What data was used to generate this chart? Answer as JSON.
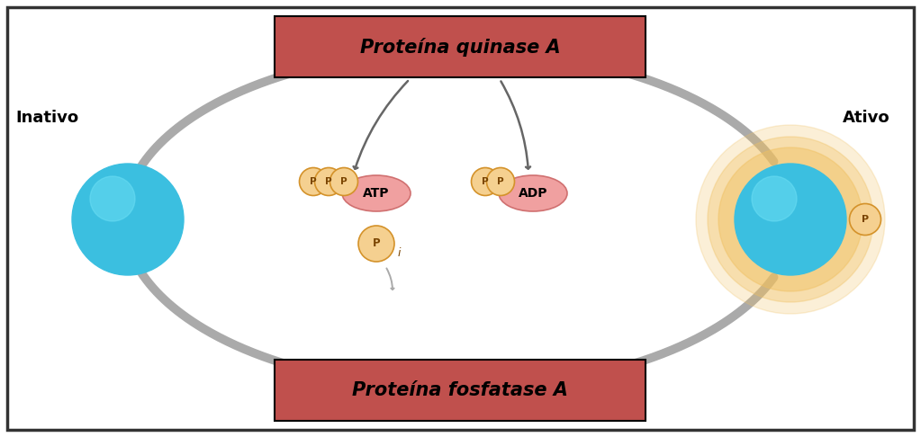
{
  "title": "Proteína quinase A",
  "title2": "Proteína fosfatase A",
  "label_inativo": "Inativo",
  "label_ativo": "Ativo",
  "label_atp": "ATP",
  "label_adp": "ADP",
  "bg_color": "#ffffff",
  "border_color": "#333333",
  "protein_color": "#3bbfe0",
  "glow_color": "#f0c060",
  "atp_ellipse_color": "#f0a0a0",
  "p_ball_color": "#f5d090",
  "p_ball_edge": "#d4922a",
  "p_text_color": "#7a4400",
  "arrow_color": "#aaaaaa",
  "arrow_edge_color": "#888888",
  "title_box_color": "#c0504d",
  "title_text_color": "#000000",
  "dark_arrow_color": "#666666",
  "fig_width": 10.23,
  "fig_height": 4.86,
  "dpi": 100
}
